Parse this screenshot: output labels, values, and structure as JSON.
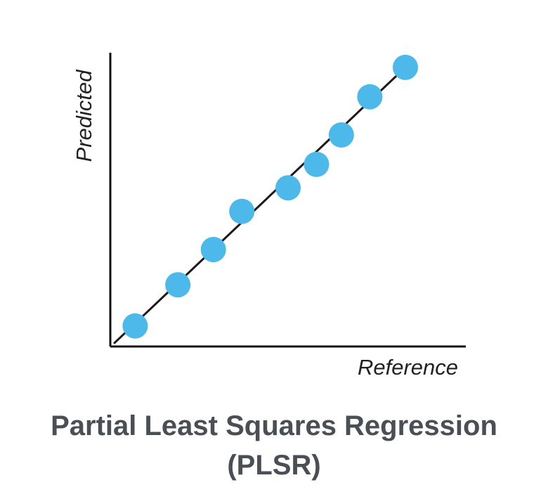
{
  "chart_data": {
    "type": "scatter",
    "title": "Partial Least Squares Regression (PLSR)",
    "x_label": "Reference",
    "y_label": "Predicted",
    "x": [
      7,
      19,
      29,
      37,
      50,
      58,
      65,
      73,
      83
    ],
    "values": [
      7,
      21,
      33,
      46,
      54,
      62,
      72,
      85,
      95
    ],
    "color": "#4db8ea",
    "fit_line": {
      "x": [
        1,
        83
      ],
      "y": [
        1,
        95
      ],
      "color": "#1a1a1a"
    },
    "xlim": [
      0,
      100
    ],
    "ylim": [
      0,
      100
    ],
    "grid": false
  }
}
